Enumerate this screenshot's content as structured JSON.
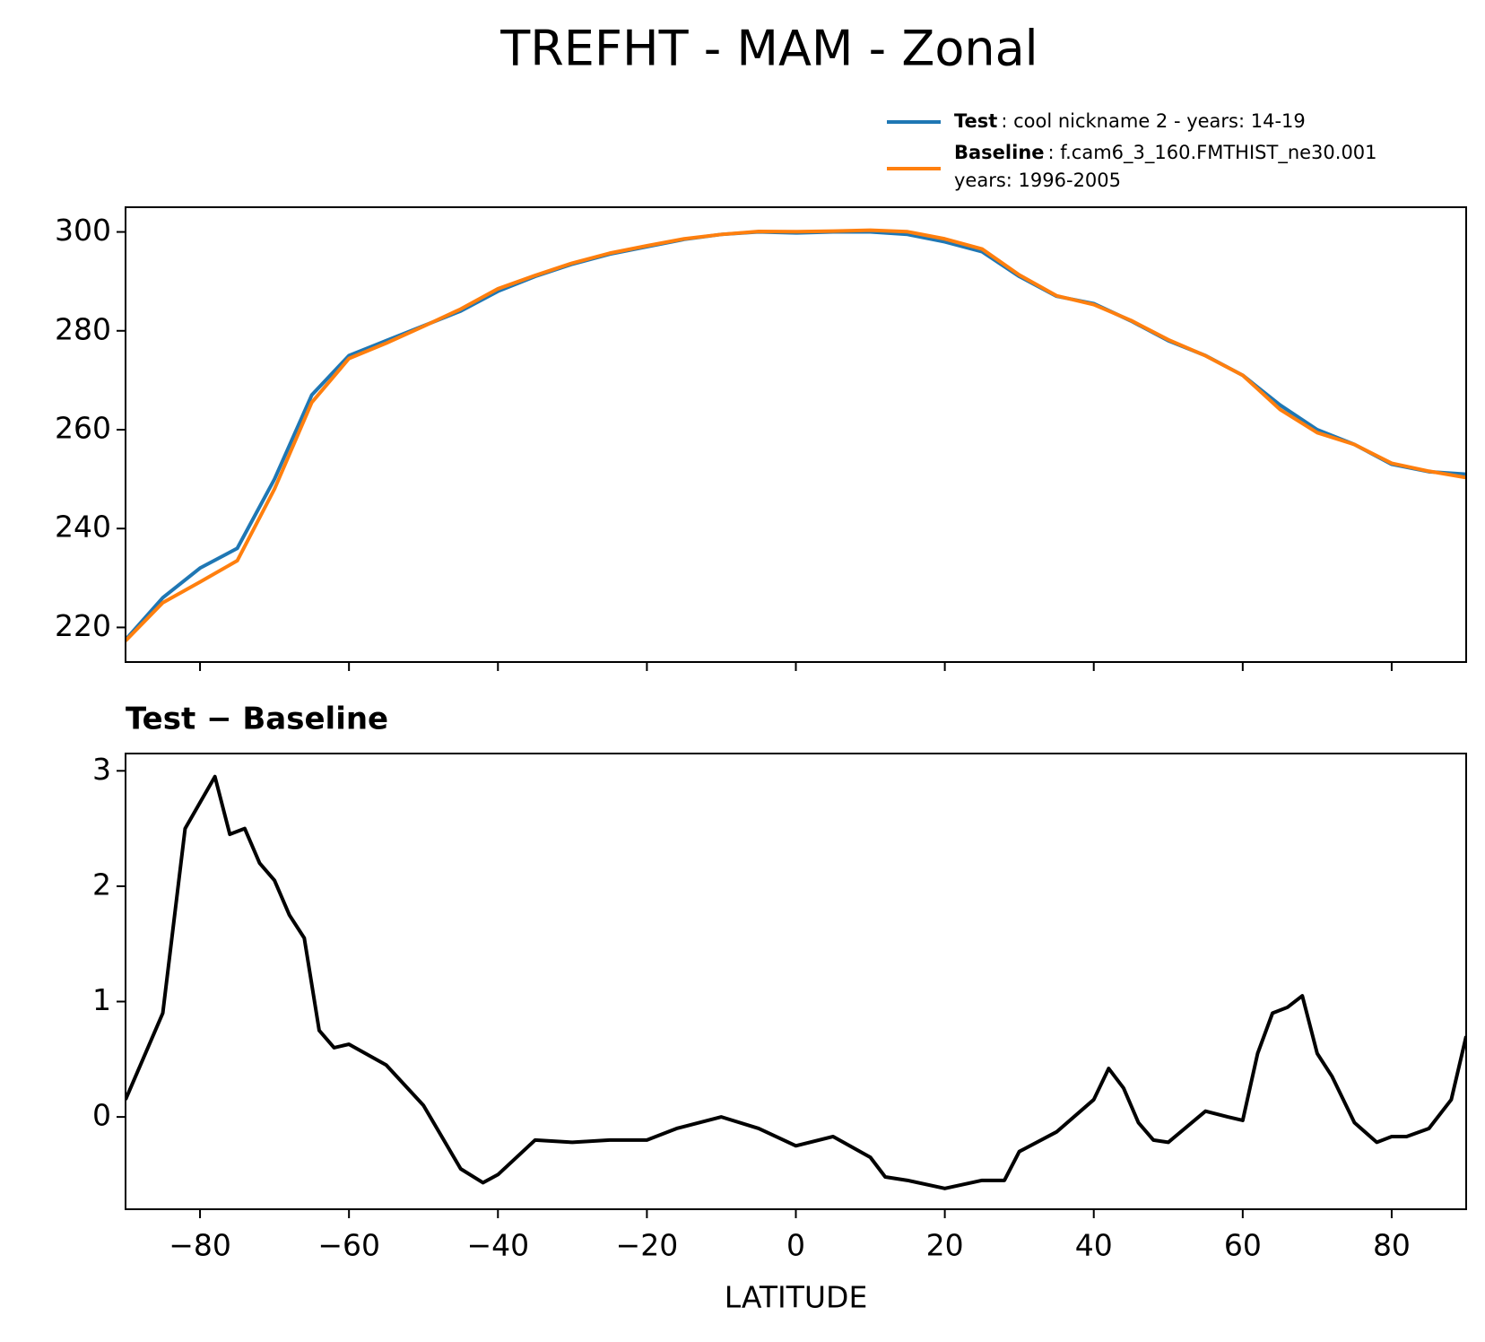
{
  "title": "TREFHT - MAM - Zonal",
  "chart_data": [
    {
      "type": "line",
      "x": [
        -90,
        -85,
        -80,
        -75,
        -70,
        -65,
        -60,
        -55,
        -50,
        -45,
        -40,
        -35,
        -30,
        -25,
        -20,
        -15,
        -10,
        -5,
        0,
        5,
        10,
        15,
        20,
        25,
        30,
        35,
        40,
        45,
        50,
        55,
        60,
        65,
        70,
        75,
        80,
        85,
        90
      ],
      "series": [
        {
          "name": "Test",
          "description": [
            ": cool nickname 2 - years: 14-19"
          ],
          "color": "#1f77b4",
          "values": [
            217.5,
            226,
            232,
            236,
            250,
            267,
            275,
            278,
            281,
            284,
            288,
            291,
            293.5,
            295.5,
            297,
            298.5,
            299.5,
            300,
            299.8,
            300,
            300,
            299.5,
            298,
            296,
            291,
            287,
            285.5,
            282,
            278,
            275,
            271,
            265,
            260,
            257,
            253,
            251.5,
            251
          ]
        },
        {
          "name": "Baseline",
          "description": [
            ": f.cam6_3_160.FMTHIST_ne30.001",
            "years: 1996-2005"
          ],
          "color": "#ff7f0e",
          "values": [
            217.3,
            225,
            229.2,
            233.5,
            248,
            265.5,
            274.4,
            277.5,
            280.9,
            284.4,
            288.5,
            291.2,
            293.7,
            295.7,
            297.2,
            298.6,
            299.5,
            300.1,
            300.05,
            300.17,
            300.35,
            300.05,
            298.6,
            296.55,
            291.3,
            287.1,
            285.3,
            282.1,
            278.2,
            274.95,
            271,
            264.1,
            259.4,
            257,
            253.2,
            251.6,
            250.3
          ]
        }
      ],
      "xlim": [
        -90,
        90
      ],
      "xticks": [
        -80,
        -60,
        -40,
        -20,
        0,
        20,
        40,
        60,
        80
      ],
      "ylim": [
        213,
        305
      ],
      "yticks": [
        220,
        240,
        260,
        280,
        300
      ]
    },
    {
      "type": "line",
      "title": "Test − Baseline",
      "xlabel": "LATITUDE",
      "x": [
        -90,
        -85,
        -82,
        -78,
        -76,
        -74,
        -72,
        -70,
        -68,
        -66,
        -64,
        -62,
        -60,
        -55,
        -50,
        -45,
        -42,
        -40,
        -35,
        -30,
        -25,
        -20,
        -16,
        -10,
        -5,
        0,
        5,
        10,
        12,
        15,
        20,
        25,
        28,
        30,
        35,
        40,
        42,
        44,
        46,
        48,
        50,
        55,
        58,
        60,
        62,
        64,
        66,
        68,
        70,
        72,
        75,
        78,
        80,
        82,
        85,
        88,
        90
      ],
      "series": [
        {
          "name": "Test − Baseline",
          "color": "#000000",
          "values": [
            0.15,
            0.9,
            2.5,
            2.95,
            2.45,
            2.5,
            2.2,
            2.05,
            1.75,
            1.55,
            0.75,
            0.6,
            0.63,
            0.45,
            0.1,
            -0.45,
            -0.57,
            -0.5,
            -0.2,
            -0.22,
            -0.2,
            -0.2,
            -0.1,
            0.0,
            -0.1,
            -0.25,
            -0.17,
            -0.35,
            -0.52,
            -0.55,
            -0.62,
            -0.55,
            -0.55,
            -0.3,
            -0.13,
            0.15,
            0.42,
            0.25,
            -0.05,
            -0.2,
            -0.22,
            0.05,
            0.0,
            -0.03,
            0.55,
            0.9,
            0.95,
            1.05,
            0.55,
            0.35,
            -0.05,
            -0.22,
            -0.17,
            -0.17,
            -0.1,
            0.15,
            0.7
          ]
        }
      ],
      "xlim": [
        -90,
        90
      ],
      "xticks": [
        {
          "value": -80,
          "label": "−80"
        },
        {
          "value": -60,
          "label": "−60"
        },
        {
          "value": -40,
          "label": "−40"
        },
        {
          "value": -20,
          "label": "−20"
        },
        0,
        20,
        40,
        60,
        80
      ],
      "ylim": [
        -0.8,
        3.15
      ],
      "yticks": [
        0,
        1,
        2,
        3
      ]
    }
  ]
}
